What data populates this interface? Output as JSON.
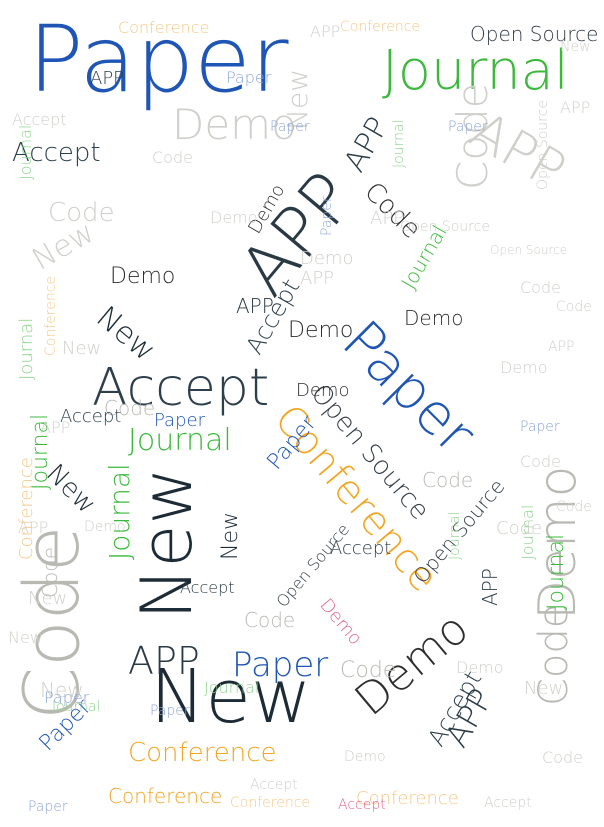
{
  "colors": {
    "paper": "#1f56b5",
    "journal": "#3cb93c",
    "code": "#b9b9b4",
    "new": "#1c2b35",
    "app": "#2a3a45",
    "conference": "#f2a623",
    "demo": "#2e2e2e",
    "accept": "#2d3f4a",
    "open_source": "#333c45",
    "faint": "#cfd0cb",
    "faint_blue": "#8fa6d6",
    "faint_green": "#8fd48f",
    "faint_orange": "#f5c98a",
    "pink": "#e0668f"
  },
  "words": [
    {
      "text": "Paper",
      "c": "paper"
    },
    {
      "text": "Journal",
      "c": "journal"
    },
    {
      "text": "Demo",
      "c": "faint"
    },
    {
      "text": "APP",
      "c": "faint"
    },
    {
      "text": "Code",
      "c": "faint"
    },
    {
      "text": "Open Source",
      "c": "open_source"
    },
    {
      "text": "Conference",
      "c": "faint_orange"
    },
    {
      "text": "Accept",
      "c": "accept"
    },
    {
      "text": "APP",
      "c": "app"
    },
    {
      "text": "New",
      "c": "faint"
    },
    {
      "text": "Code",
      "c": "code"
    },
    {
      "text": "Paper",
      "c": "paper"
    },
    {
      "text": "Accept",
      "c": "accept"
    },
    {
      "text": "Journal",
      "c": "journal"
    },
    {
      "text": "Conference",
      "c": "conference"
    },
    {
      "text": "Open Source",
      "c": "open_source"
    },
    {
      "text": "New",
      "c": "new"
    },
    {
      "text": "Code",
      "c": "code"
    },
    {
      "text": "Demo",
      "c": "code"
    },
    {
      "text": "APP",
      "c": "app"
    },
    {
      "text": "Paper",
      "c": "paper"
    },
    {
      "text": "Conference",
      "c": "conference"
    },
    {
      "text": "Conference",
      "c": "conference"
    },
    {
      "text": "New",
      "c": "new"
    },
    {
      "text": "Demo",
      "c": "demo"
    },
    {
      "text": "APP",
      "c": "app"
    },
    {
      "text": "Accept",
      "c": "accept"
    },
    {
      "text": "Code",
      "c": "code"
    },
    {
      "text": "Code",
      "c": "demo"
    },
    {
      "text": "Paper",
      "c": "faint_blue"
    },
    {
      "text": "Journal",
      "c": "journal"
    },
    {
      "text": "Demo",
      "c": "demo"
    },
    {
      "text": "APP",
      "c": "app"
    },
    {
      "text": "New",
      "c": "new"
    },
    {
      "text": "Accept",
      "c": "accept"
    },
    {
      "text": "Code",
      "c": "code"
    },
    {
      "text": "Journal",
      "c": "journal"
    },
    {
      "text": "Open Source",
      "c": "open_source"
    },
    {
      "text": "Paper",
      "c": "paper"
    },
    {
      "text": "Demo",
      "c": "demo"
    },
    {
      "text": "APP",
      "c": "app"
    },
    {
      "text": "New",
      "c": "new"
    },
    {
      "text": "Code",
      "c": "code"
    },
    {
      "text": "Accept",
      "c": "accept"
    },
    {
      "text": "Demo",
      "c": "demo"
    },
    {
      "text": "Journal",
      "c": "journal"
    },
    {
      "text": "Paper",
      "c": "paper"
    },
    {
      "text": "Code",
      "c": "code"
    },
    {
      "text": "APP",
      "c": "app"
    },
    {
      "text": "New",
      "c": "new"
    },
    {
      "text": "Demo",
      "c": "demo"
    },
    {
      "text": "Accept",
      "c": "accept"
    },
    {
      "text": "Journal",
      "c": "journal"
    },
    {
      "text": "Paper",
      "c": "paper"
    },
    {
      "text": "APP",
      "c": "app"
    },
    {
      "text": "Code",
      "c": "code"
    },
    {
      "text": "Open Source",
      "c": "open_source"
    },
    {
      "text": "Paper",
      "c": "faint_blue"
    },
    {
      "text": "Code",
      "c": "faint"
    },
    {
      "text": "New",
      "c": "faint"
    },
    {
      "text": "Journal",
      "c": "faint_green"
    },
    {
      "text": "Conference",
      "c": "faint_orange"
    },
    {
      "text": "Demo",
      "c": "faint"
    },
    {
      "text": "APP",
      "c": "faint"
    },
    {
      "text": "Code",
      "c": "faint"
    },
    {
      "text": "New",
      "c": "faint"
    },
    {
      "text": "Paper",
      "c": "faint_blue"
    },
    {
      "text": "Journal",
      "c": "faint_green"
    },
    {
      "text": "Demo",
      "c": "demo"
    },
    {
      "text": "Accept",
      "c": "accept"
    },
    {
      "text": "Code",
      "c": "faint"
    },
    {
      "text": "APP",
      "c": "faint"
    },
    {
      "text": "Conference",
      "c": "faint_orange"
    },
    {
      "text": "Paper",
      "c": "faint_blue"
    },
    {
      "text": "New",
      "c": "faint"
    },
    {
      "text": "Demo",
      "c": "faint"
    },
    {
      "text": "Open Source",
      "c": "faint"
    },
    {
      "text": "Journal",
      "c": "faint_green"
    },
    {
      "text": "Accept",
      "c": "pink"
    },
    {
      "text": "Code",
      "c": "faint"
    },
    {
      "text": "Demo",
      "c": "pink"
    },
    {
      "text": "APP",
      "c": "faint"
    },
    {
      "text": "Paper",
      "c": "faint_blue"
    },
    {
      "text": "New",
      "c": "faint"
    },
    {
      "text": "Journal",
      "c": "faint_green"
    },
    {
      "text": "Code",
      "c": "faint"
    },
    {
      "text": "Conference",
      "c": "faint_orange"
    },
    {
      "text": "Demo",
      "c": "faint"
    },
    {
      "text": "APP",
      "c": "faint"
    },
    {
      "text": "Accept",
      "c": "faint"
    },
    {
      "text": "Paper",
      "c": "faint_blue"
    },
    {
      "text": "New",
      "c": "faint"
    },
    {
      "text": "Open Source",
      "c": "faint"
    },
    {
      "text": "Journal",
      "c": "faint_green"
    },
    {
      "text": "Code",
      "c": "faint"
    },
    {
      "text": "Demo",
      "c": "faint"
    },
    {
      "text": "APP",
      "c": "faint"
    },
    {
      "text": "Conference",
      "c": "faint_orange"
    },
    {
      "text": "Paper",
      "c": "faint_blue"
    },
    {
      "text": "Accept",
      "c": "faint"
    },
    {
      "text": "New",
      "c": "faint"
    },
    {
      "text": "Journal",
      "c": "faint_green"
    },
    {
      "text": "Code",
      "c": "faint"
    },
    {
      "text": "Demo",
      "c": "faint"
    },
    {
      "text": "APP",
      "c": "faint"
    },
    {
      "text": "Paper",
      "c": "faint_blue"
    },
    {
      "text": "New",
      "c": "faint"
    },
    {
      "text": "Conference",
      "c": "faint_orange"
    },
    {
      "text": "Open Source",
      "c": "faint"
    },
    {
      "text": "Code",
      "c": "faint"
    },
    {
      "text": "Journal",
      "c": "faint_green"
    },
    {
      "text": "Demo",
      "c": "faint"
    },
    {
      "text": "Accept",
      "c": "faint"
    },
    {
      "text": "APP",
      "c": "faint"
    }
  ]
}
